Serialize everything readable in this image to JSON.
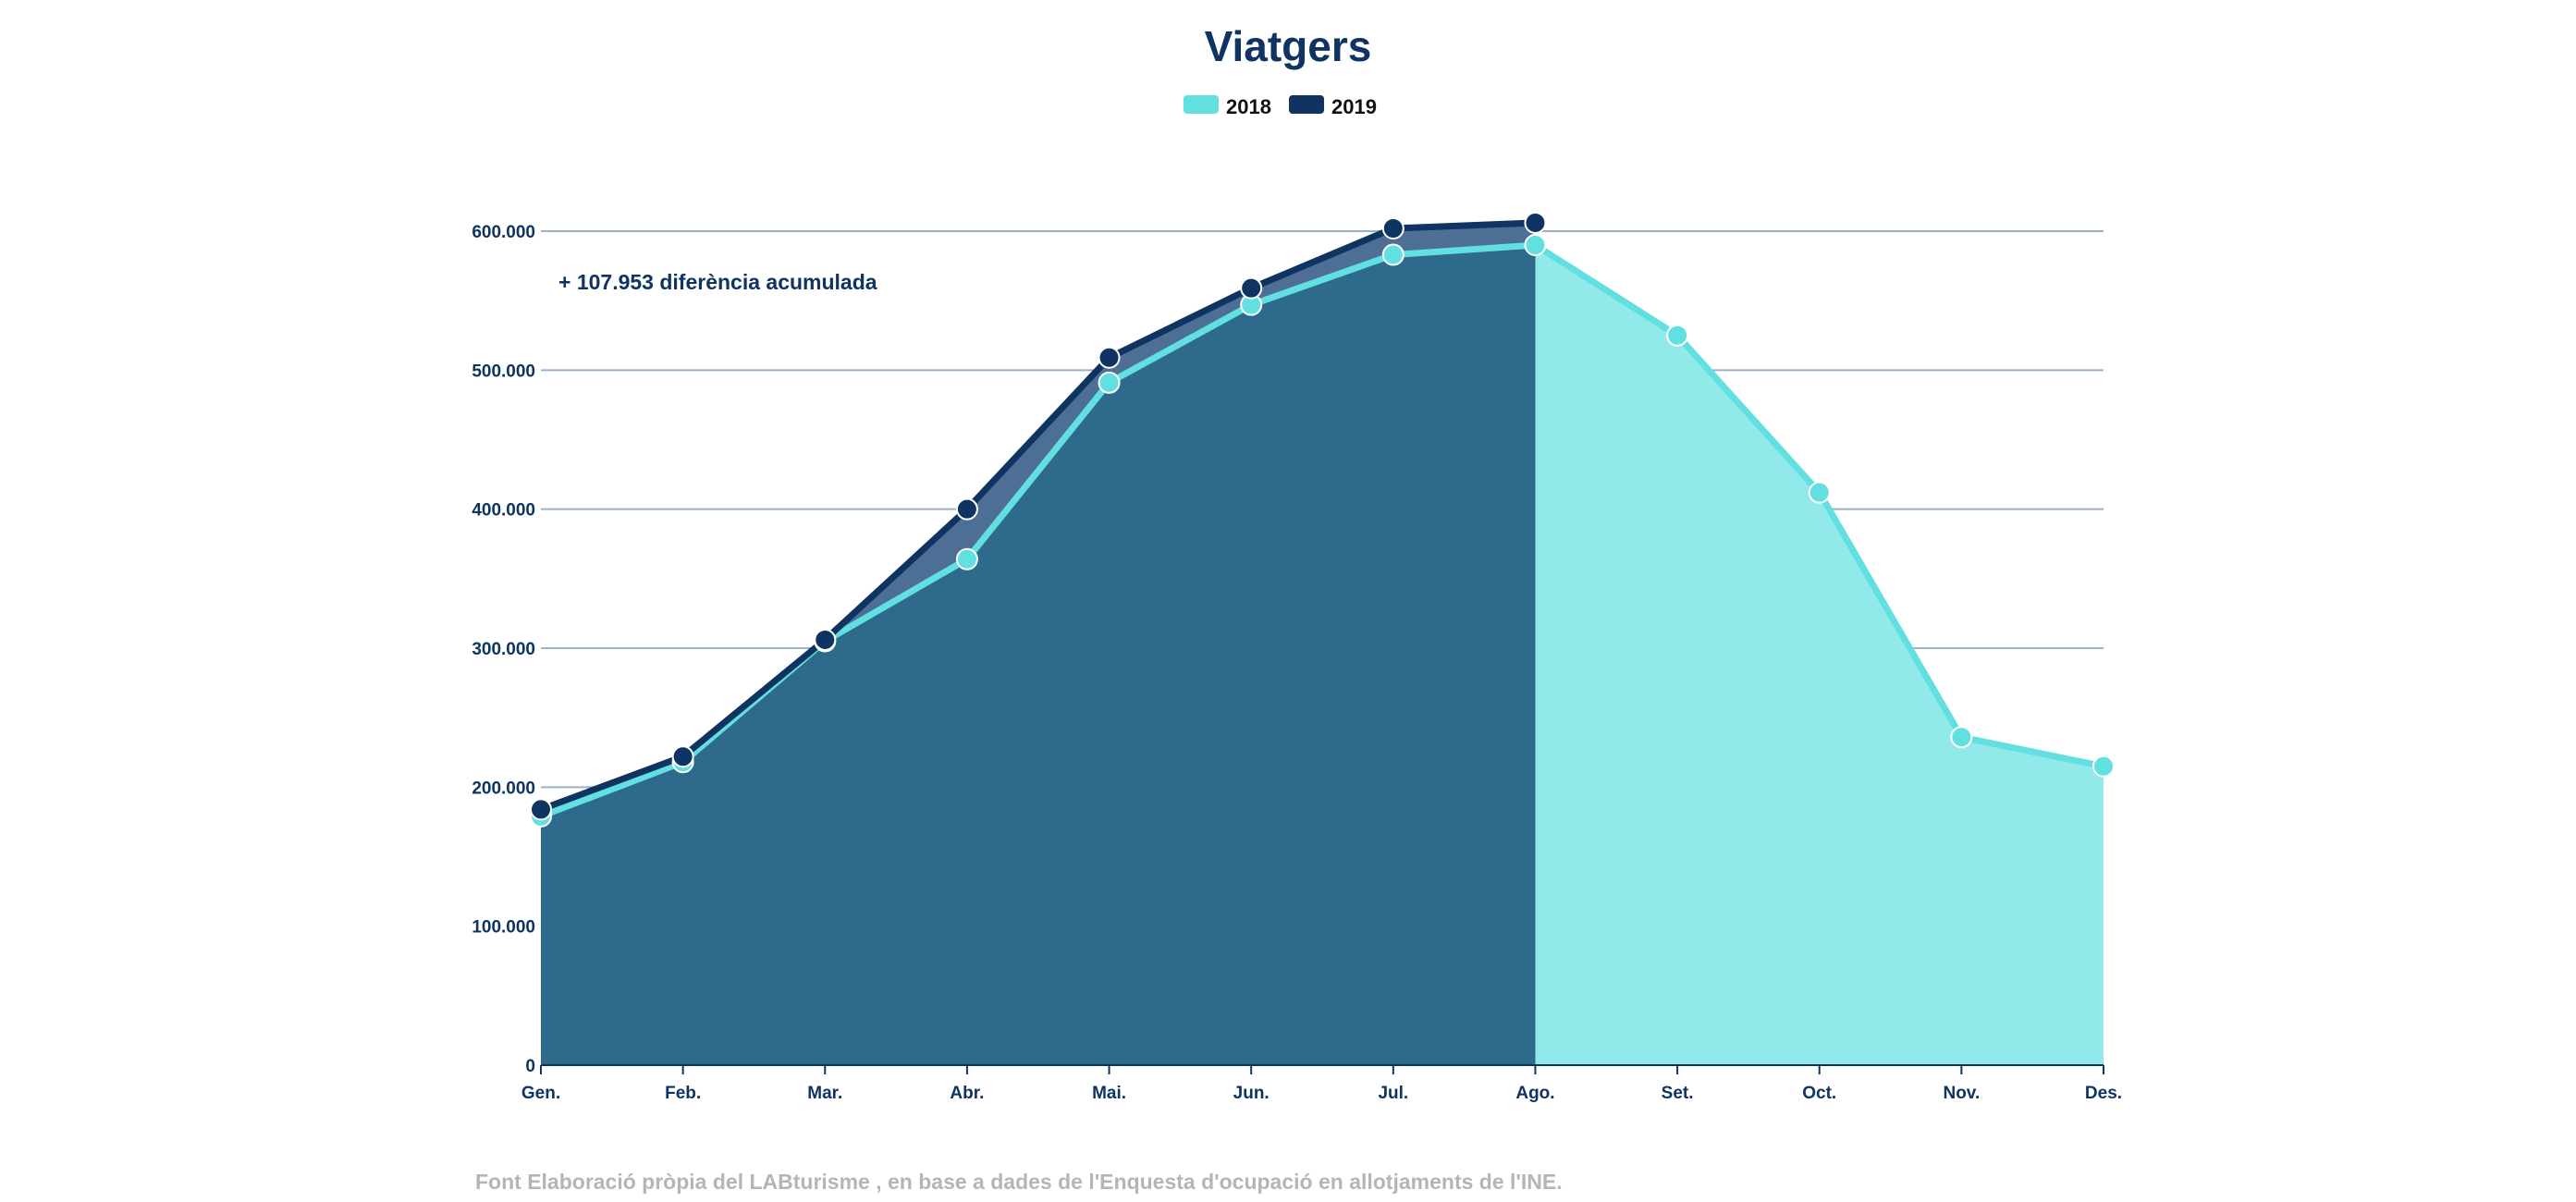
{
  "colors": {
    "series_2018": "#62dfe0",
    "series_2019": "#0f3462",
    "area_2018": "#92e9e9",
    "area_2019": "#2e6a8b",
    "area_gap": "#4d6e95",
    "text_dark": "#0f3462",
    "gridline": "#9eb0c6",
    "source_text": "#b5b5b5"
  },
  "chart_data": {
    "type": "area",
    "title": "Viatgers",
    "categories": [
      "Gen.",
      "Feb.",
      "Mar.",
      "Abr.",
      "Mai.",
      "Jun.",
      "Jul.",
      "Ago.",
      "Set.",
      "Oct.",
      "Nov.",
      "Des."
    ],
    "series": [
      {
        "name": "2018",
        "values": [
          179000,
          218000,
          305000,
          364000,
          491000,
          547000,
          583000,
          590000,
          525000,
          412000,
          236000,
          215000
        ]
      },
      {
        "name": "2019",
        "values": [
          184000,
          222000,
          306000,
          400000,
          509000,
          559000,
          602000,
          606000,
          null,
          null,
          null,
          null
        ]
      }
    ],
    "ylim": [
      0,
      600000
    ],
    "yticks": [
      0,
      100000,
      200000,
      300000,
      400000,
      500000,
      600000
    ],
    "ytick_labels": [
      "0",
      "100.000",
      "200.000",
      "300.000",
      "400.000",
      "500.000",
      "600.000"
    ],
    "xlabel": "",
    "ylabel": "",
    "grid": true,
    "legend_position": "top-center",
    "annotation": "+ 107.953 diferència acumulada",
    "source": "Font Elaboració pròpia del LABturisme , en base a dades de l'Enquesta d'ocupació en allotjaments de l'INE."
  }
}
